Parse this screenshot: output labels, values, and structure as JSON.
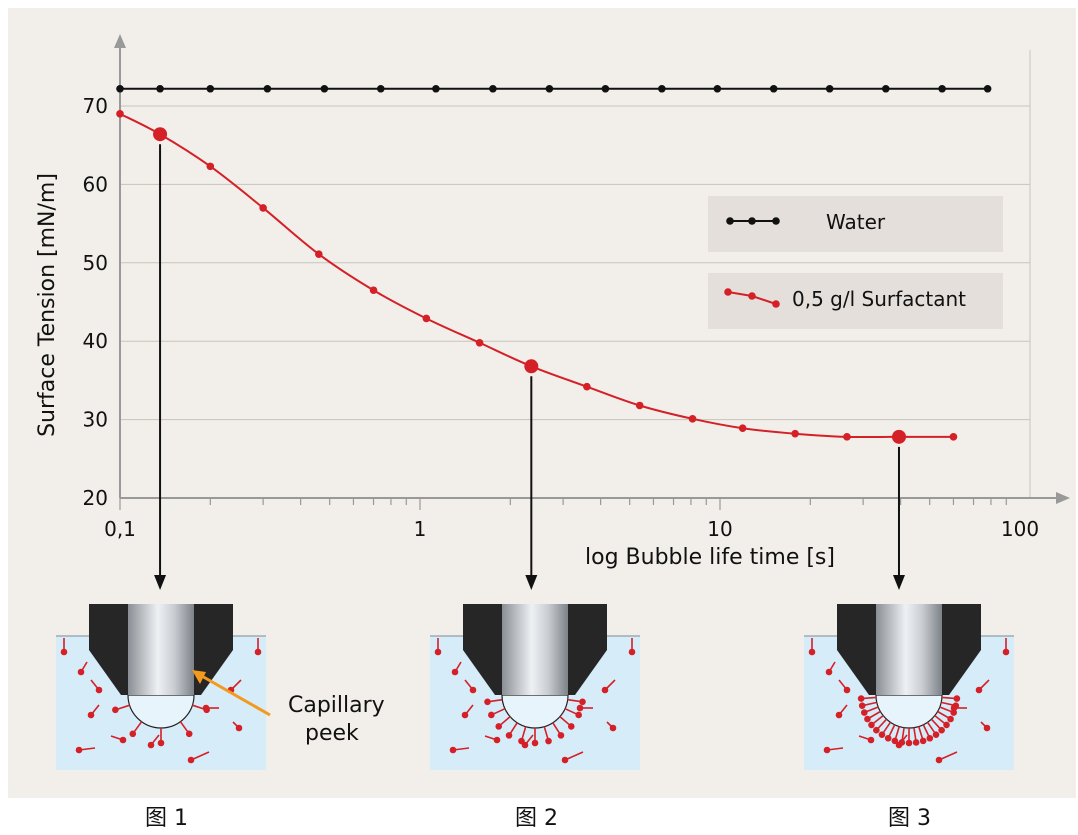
{
  "chart_data": {
    "type": "line",
    "ylabel": "Surface Tension [mN/m]",
    "xlabel": "log Bubble life time [s]",
    "x_scale": "log",
    "xlim": [
      0.1,
      100
    ],
    "ylim": [
      20,
      75
    ],
    "x_ticks": [
      "0,1",
      "1",
      "10",
      "100"
    ],
    "y_ticks": [
      "20",
      "30",
      "40",
      "50",
      "60",
      "70"
    ],
    "grid": "horizontal",
    "legend_position": "right",
    "series": [
      {
        "name": "Water",
        "color": "#111111",
        "x": [
          0.1,
          0.136,
          0.2,
          0.31,
          0.48,
          0.74,
          1.13,
          1.75,
          2.7,
          4.15,
          6.4,
          9.8,
          15.1,
          23.2,
          35.7,
          55,
          78
        ],
        "y": [
          72.2,
          72.2,
          72.2,
          72.2,
          72.2,
          72.2,
          72.2,
          72.2,
          72.2,
          72.2,
          72.2,
          72.2,
          72.2,
          72.2,
          72.2,
          72.2,
          72.2
        ]
      },
      {
        "name": "0,5 g/l Surfactant",
        "color": "#d42027",
        "x": [
          0.1,
          0.136,
          0.2,
          0.3,
          0.46,
          0.7,
          1.05,
          1.58,
          2.35,
          3.6,
          5.4,
          8.1,
          11.9,
          17.8,
          26.5,
          39.5,
          60
        ],
        "y": [
          69,
          66.4,
          62.3,
          57,
          51.1,
          46.5,
          42.9,
          39.8,
          36.8,
          34.2,
          31.8,
          30.1,
          28.9,
          28.2,
          27.8,
          27.8,
          27.8
        ],
        "highlighted_points": [
          {
            "x": 0.136,
            "y": 66.4
          },
          {
            "x": 2.35,
            "y": 36.8
          },
          {
            "x": 39.5,
            "y": 27.8
          }
        ]
      }
    ],
    "annotations": [
      {
        "text": "Capillary peek"
      }
    ]
  },
  "captions": [
    "图 1",
    "图 2",
    "图 3"
  ]
}
